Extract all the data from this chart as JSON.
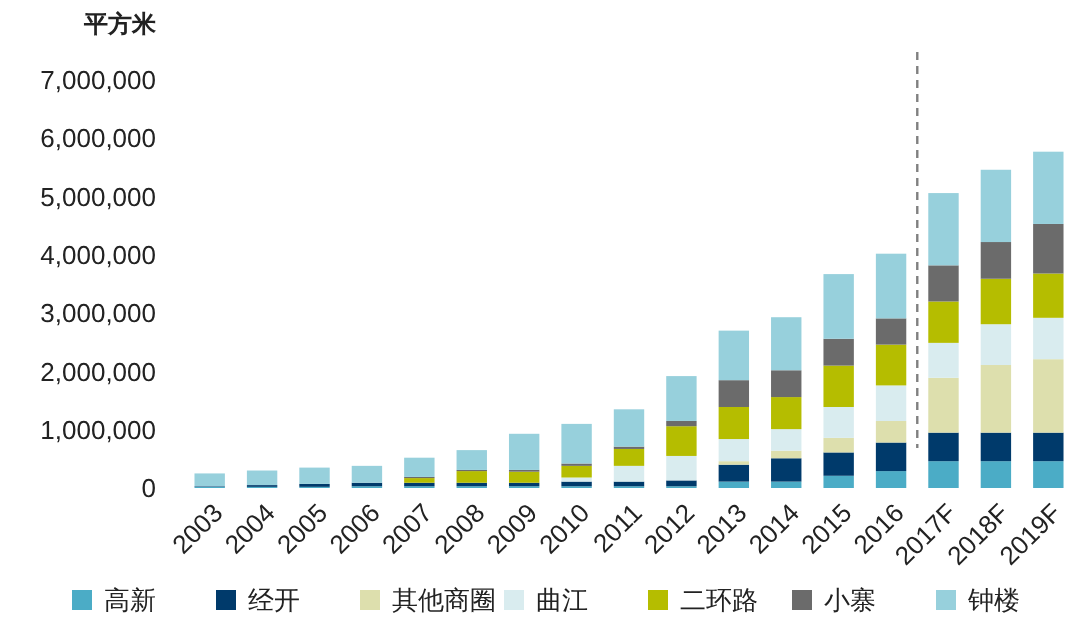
{
  "chart_data": {
    "type": "bar",
    "stacked": true,
    "ylabel": "平方米",
    "categories": [
      "2003",
      "2004",
      "2005",
      "2006",
      "2007",
      "2008",
      "2009",
      "2010",
      "2011",
      "2012",
      "2013",
      "2014",
      "2015",
      "2016",
      "2017F",
      "2018F",
      "2019F"
    ],
    "series": [
      {
        "name": "高新",
        "color": "#4bacc6",
        "values": [
          20000,
          20000,
          20000,
          30000,
          30000,
          30000,
          30000,
          30000,
          30000,
          30000,
          110000,
          110000,
          210000,
          290000,
          460000,
          460000,
          460000
        ]
      },
      {
        "name": "经开",
        "color": "#003a6b",
        "values": [
          10000,
          30000,
          50000,
          60000,
          60000,
          60000,
          60000,
          80000,
          80000,
          100000,
          290000,
          400000,
          400000,
          490000,
          490000,
          490000,
          490000
        ]
      },
      {
        "name": "其他商圈",
        "color": "#dddfad",
        "values": [
          0,
          0,
          0,
          0,
          0,
          0,
          0,
          0,
          0,
          0,
          60000,
          130000,
          250000,
          370000,
          940000,
          1160000,
          1260000
        ]
      },
      {
        "name": "曲江",
        "color": "#d9ecef",
        "values": [
          0,
          0,
          0,
          0,
          0,
          0,
          0,
          70000,
          270000,
          420000,
          380000,
          370000,
          530000,
          610000,
          600000,
          700000,
          710000
        ]
      },
      {
        "name": "二环路",
        "color": "#b5bd00",
        "values": [
          0,
          0,
          0,
          0,
          80000,
          200000,
          190000,
          200000,
          290000,
          510000,
          550000,
          550000,
          710000,
          700000,
          710000,
          780000,
          760000
        ]
      },
      {
        "name": "小寨",
        "color": "#6b6b6b",
        "values": [
          0,
          0,
          0,
          0,
          20000,
          20000,
          30000,
          40000,
          40000,
          90000,
          460000,
          460000,
          460000,
          450000,
          620000,
          630000,
          850000
        ]
      },
      {
        "name": "钟楼",
        "color": "#97d0dc",
        "values": [
          220000,
          250000,
          280000,
          290000,
          330000,
          340000,
          620000,
          680000,
          640000,
          770000,
          850000,
          910000,
          1110000,
          1110000,
          1240000,
          1240000,
          1240000
        ]
      }
    ],
    "ylim": [
      0,
      7000000
    ],
    "yticks": [
      {
        "value": 0,
        "label": "0"
      },
      {
        "value": 1000000,
        "label": "1,000,000"
      },
      {
        "value": 2000000,
        "label": "2,000,000"
      },
      {
        "value": 3000000,
        "label": "3,000,000"
      },
      {
        "value": 4000000,
        "label": "4,000,000"
      },
      {
        "value": 5000000,
        "label": "5,000,000"
      },
      {
        "value": 6000000,
        "label": "6,000,000"
      },
      {
        "value": 7000000,
        "label": "7,000,000"
      }
    ],
    "ref_lines": [
      {
        "axis": "x",
        "value": "2017F",
        "color": "#808080",
        "line_style": "dashed"
      }
    ],
    "grid": false,
    "legend": "bottom"
  }
}
